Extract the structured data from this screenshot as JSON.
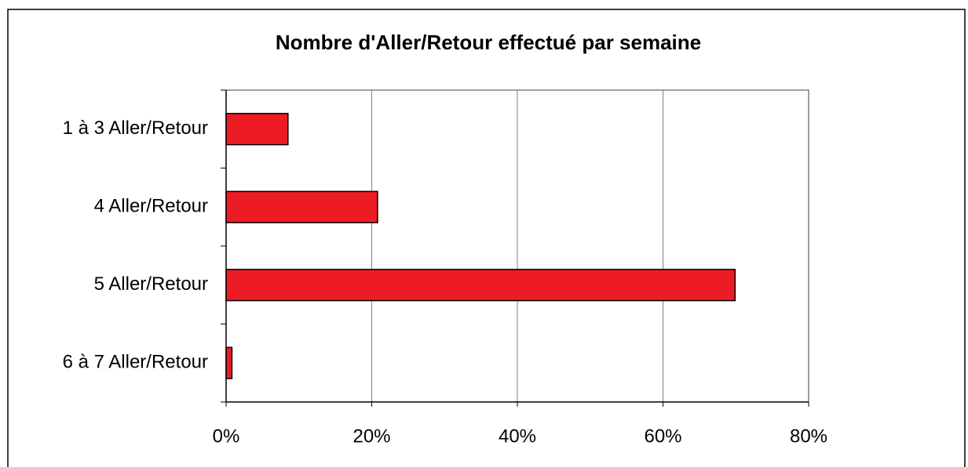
{
  "chart_data": {
    "type": "bar",
    "orientation": "horizontal",
    "title": "Nombre d'Aller/Retour effectué par semaine",
    "categories": [
      "1 à 3 Aller/Retour",
      "4 Aller/Retour",
      "5 Aller/Retour",
      "6 à 7 Aller/Retour"
    ],
    "values": [
      8.5,
      20.8,
      69.9,
      0.8
    ],
    "color": "#ed1c24",
    "xlim": [
      0,
      80
    ],
    "xticks": [
      {
        "value": 0,
        "label": "0%"
      },
      {
        "value": 20,
        "label": "20%"
      },
      {
        "value": 40,
        "label": "40%"
      },
      {
        "value": 60,
        "label": "60%"
      },
      {
        "value": 80,
        "label": "80%"
      }
    ],
    "grid": true
  }
}
